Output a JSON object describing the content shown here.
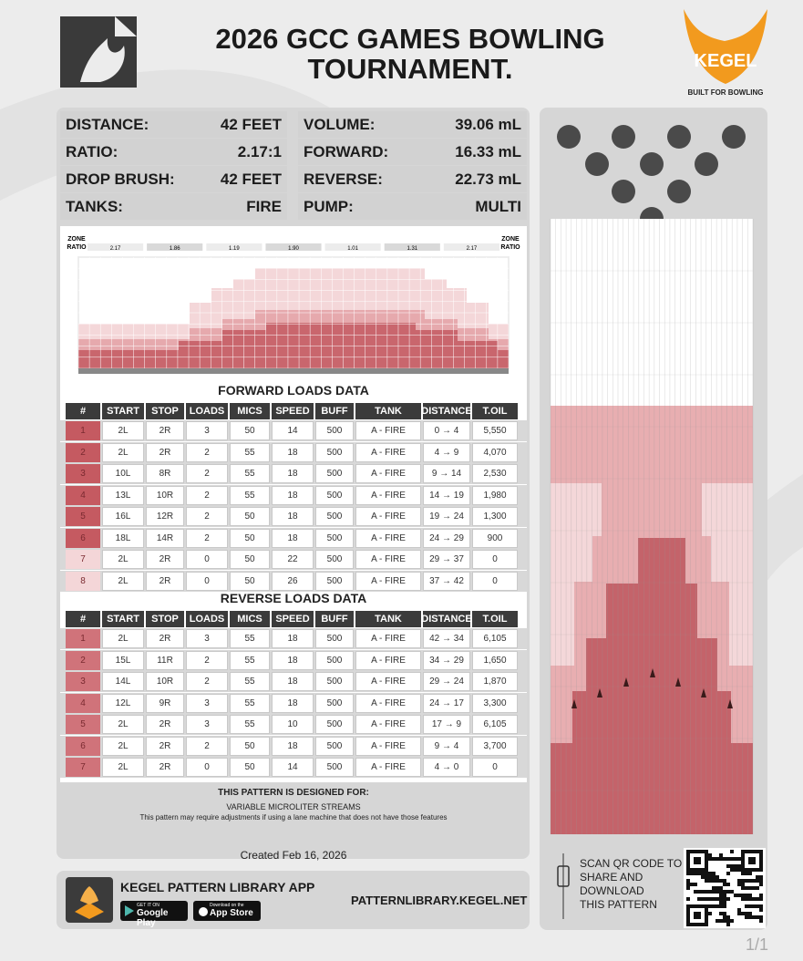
{
  "header": {
    "title_lines": [
      "2026 GCC GAMES BOWLING",
      "TOURNAMENT."
    ],
    "brand": "KEGEL",
    "tagline": "BUILT FOR BOWLING"
  },
  "specs_left": [
    {
      "label": "DISTANCE:",
      "value": "42 FEET"
    },
    {
      "label": "RATIO:",
      "value": "2.17:1"
    },
    {
      "label": "DROP BRUSH:",
      "value": "42 FEET"
    },
    {
      "label": "TANKS:",
      "value": "FIRE"
    }
  ],
  "specs_right": [
    {
      "label": "VOLUME:",
      "value": "39.06 mL"
    },
    {
      "label": "FORWARD:",
      "value": "16.33 mL"
    },
    {
      "label": "REVERSE:",
      "value": "22.73 mL"
    },
    {
      "label": "PUMP:",
      "value": "MULTI"
    }
  ],
  "zone_ratio": {
    "label_top": "ZONE",
    "label_bottom": "RATIO",
    "ratios": [
      "2.17",
      "1.86",
      "1.19",
      "1.90",
      "1.01",
      "1.31",
      "2.17"
    ]
  },
  "forward_table": {
    "title": "FORWARD LOADS DATA",
    "columns": [
      "#",
      "START",
      "STOP",
      "LOADS",
      "MICS",
      "SPEED",
      "BUFF",
      "TANK",
      "DISTANCE",
      "T.OIL"
    ],
    "rows": [
      [
        "1",
        "2L",
        "2R",
        "3",
        "50",
        "14",
        "500",
        "A - FIRE",
        "0 → 4",
        "5,550"
      ],
      [
        "2",
        "2L",
        "2R",
        "2",
        "55",
        "18",
        "500",
        "A - FIRE",
        "4 → 9",
        "4,070"
      ],
      [
        "3",
        "10L",
        "8R",
        "2",
        "55",
        "18",
        "500",
        "A - FIRE",
        "9 → 14",
        "2,530"
      ],
      [
        "4",
        "13L",
        "10R",
        "2",
        "55",
        "18",
        "500",
        "A - FIRE",
        "14 → 19",
        "1,980"
      ],
      [
        "5",
        "16L",
        "12R",
        "2",
        "50",
        "18",
        "500",
        "A - FIRE",
        "19 → 24",
        "1,300"
      ],
      [
        "6",
        "18L",
        "14R",
        "2",
        "50",
        "18",
        "500",
        "A - FIRE",
        "24 → 29",
        "900"
      ],
      [
        "7",
        "2L",
        "2R",
        "0",
        "50",
        "22",
        "500",
        "A - FIRE",
        "29 → 37",
        "0"
      ],
      [
        "8",
        "2L",
        "2R",
        "0",
        "50",
        "26",
        "500",
        "A - FIRE",
        "37 → 42",
        "0"
      ]
    ]
  },
  "reverse_table": {
    "title": "REVERSE LOADS DATA",
    "columns": [
      "#",
      "START",
      "STOP",
      "LOADS",
      "MICS",
      "SPEED",
      "BUFF",
      "TANK",
      "DISTANCE",
      "T.OIL"
    ],
    "rows": [
      [
        "1",
        "2L",
        "2R",
        "3",
        "55",
        "18",
        "500",
        "A - FIRE",
        "42 → 34",
        "6,105"
      ],
      [
        "2",
        "15L",
        "11R",
        "2",
        "55",
        "18",
        "500",
        "A - FIRE",
        "34 → 29",
        "1,650"
      ],
      [
        "3",
        "14L",
        "10R",
        "2",
        "55",
        "18",
        "500",
        "A - FIRE",
        "29 → 24",
        "1,870"
      ],
      [
        "4",
        "12L",
        "9R",
        "3",
        "55",
        "18",
        "500",
        "A - FIRE",
        "24 → 17",
        "3,300"
      ],
      [
        "5",
        "2L",
        "2R",
        "3",
        "55",
        "10",
        "500",
        "A - FIRE",
        "17 → 9",
        "6,105"
      ],
      [
        "6",
        "2L",
        "2R",
        "2",
        "50",
        "18",
        "500",
        "A - FIRE",
        "9 → 4",
        "3,700"
      ],
      [
        "7",
        "2L",
        "2R",
        "0",
        "50",
        "14",
        "500",
        "A - FIRE",
        "4 → 0",
        "0"
      ]
    ]
  },
  "notes": {
    "heading": "THIS PATTERN IS DESIGNED FOR:",
    "feature": "VARIABLE MICROLITER STREAMS",
    "disclaimer": "This pattern may require adjustments if using a lane machine that does not have those features",
    "created": "Created Feb 16, 2026"
  },
  "app": {
    "title": "KEGEL PATTERN LIBRARY APP",
    "google_small": "GET IT ON",
    "google": "Google Play",
    "apple_small": "Download on the",
    "apple": "App Store",
    "url": "PATTERNLIBRARY.KEGEL.NET"
  },
  "qr": {
    "lines": [
      "SCAN QR CODE TO",
      "SHARE AND",
      "DOWNLOAD",
      "THIS PATTERN"
    ]
  },
  "page": "1/1"
}
